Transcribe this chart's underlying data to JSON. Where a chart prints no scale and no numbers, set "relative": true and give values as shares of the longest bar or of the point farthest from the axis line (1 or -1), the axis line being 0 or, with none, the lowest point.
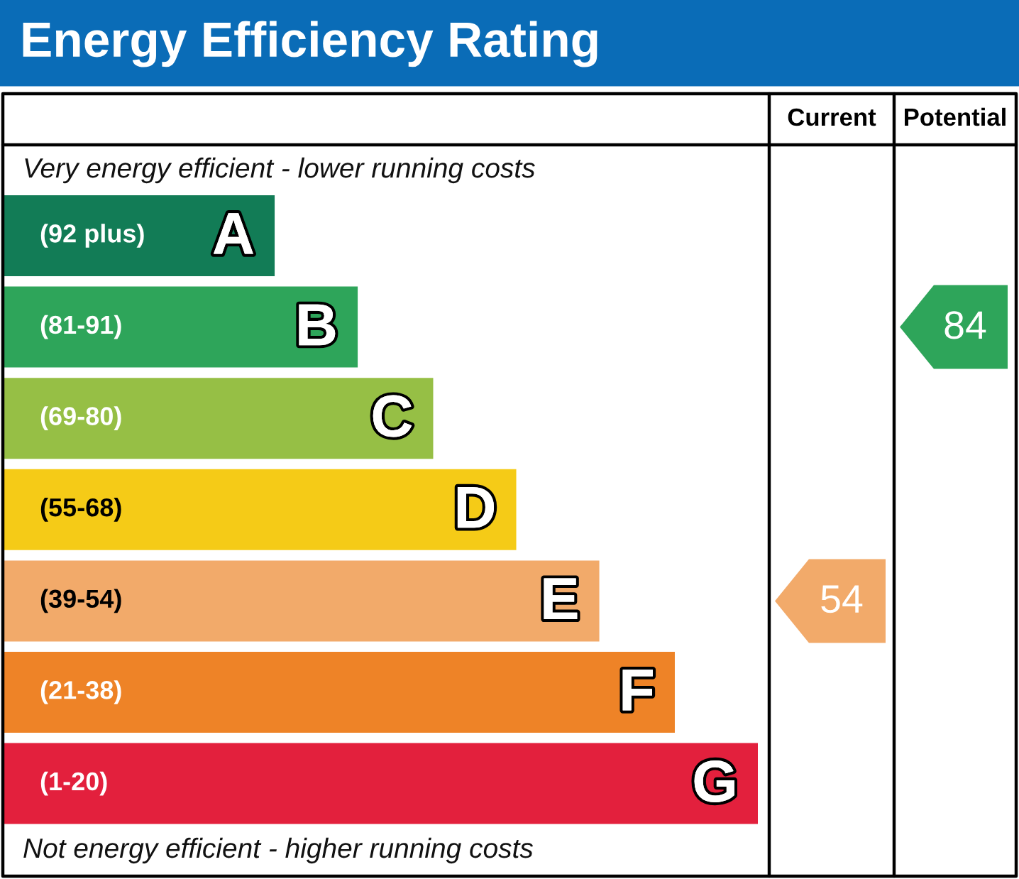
{
  "chart_data": [
    {
      "type": "bar",
      "title": "Energy Efficiency Rating",
      "orientation": "horizontal",
      "relative": true,
      "categories": [
        "A",
        "B",
        "C",
        "D",
        "E",
        "F",
        "G"
      ],
      "values": [
        0.36,
        0.47,
        0.57,
        0.68,
        0.79,
        0.89,
        1.0
      ],
      "colors": [
        "#127c56",
        "#2ea55a",
        "#96bf45",
        "#f5cb17",
        "#f2aa6a",
        "#ee8327",
        "#e3203d"
      ],
      "annotations": [
        "Very energy efficient - lower running costs",
        "Not energy efficient - higher running costs",
        "(92 plus)",
        "(81-91)",
        "(69-80)",
        "(55-68)",
        "(39-54)",
        "(21-38)",
        "(1-20)"
      ]
    },
    {
      "type": "other",
      "title": "Current",
      "categories": [
        null,
        null,
        null,
        null,
        "54",
        null,
        null
      ],
      "color": "#f2aa6a"
    },
    {
      "type": "other",
      "title": "Potential",
      "categories": [
        null,
        "84",
        null,
        null,
        null,
        null,
        null
      ],
      "color": "#2ea55a"
    }
  ]
}
